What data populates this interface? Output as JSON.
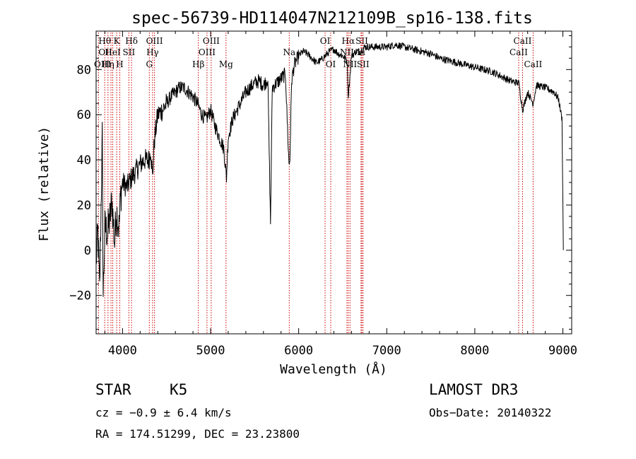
{
  "chart_data": {
    "type": "line",
    "title": "spec-56739-HD114047N212109B_sp16-138.fits",
    "xlabel": "Wavelength (Å)",
    "ylabel": "Flux (relative)",
    "xlim": [
      3700,
      9100
    ],
    "ylim": [
      -37,
      97
    ],
    "xticks": [
      4000,
      5000,
      6000,
      7000,
      8000,
      9000
    ],
    "yticks": [
      -20,
      0,
      20,
      40,
      60,
      80
    ],
    "series": [
      {
        "name": "flux",
        "anchors": [
          [
            3700,
            -5
          ],
          [
            3720,
            8
          ],
          [
            3740,
            -18
          ],
          [
            3760,
            28
          ],
          [
            3770,
            50
          ],
          [
            3780,
            -20
          ],
          [
            3800,
            10
          ],
          [
            3830,
            8
          ],
          [
            3860,
            15
          ],
          [
            3880,
            22
          ],
          [
            3910,
            3
          ],
          [
            3930,
            18
          ],
          [
            3960,
            10
          ],
          [
            3980,
            25
          ],
          [
            4000,
            30
          ],
          [
            4050,
            28
          ],
          [
            4100,
            32
          ],
          [
            4150,
            35
          ],
          [
            4200,
            38
          ],
          [
            4250,
            40
          ],
          [
            4300,
            40
          ],
          [
            4320,
            45
          ],
          [
            4340,
            32
          ],
          [
            4360,
            48
          ],
          [
            4400,
            60
          ],
          [
            4450,
            62
          ],
          [
            4500,
            65
          ],
          [
            4550,
            68
          ],
          [
            4600,
            70
          ],
          [
            4650,
            72
          ],
          [
            4700,
            72
          ],
          [
            4750,
            70
          ],
          [
            4800,
            68
          ],
          [
            4850,
            65
          ],
          [
            4900,
            60
          ],
          [
            4950,
            58
          ],
          [
            5000,
            62
          ],
          [
            5050,
            55
          ],
          [
            5100,
            50
          ],
          [
            5150,
            45
          ],
          [
            5180,
            32
          ],
          [
            5200,
            50
          ],
          [
            5250,
            58
          ],
          [
            5300,
            62
          ],
          [
            5350,
            66
          ],
          [
            5400,
            70
          ],
          [
            5450,
            72
          ],
          [
            5500,
            74
          ],
          [
            5550,
            75
          ],
          [
            5600,
            73
          ],
          [
            5650,
            76
          ],
          [
            5680,
            12
          ],
          [
            5700,
            72
          ],
          [
            5750,
            74
          ],
          [
            5800,
            76
          ],
          [
            5850,
            78
          ],
          [
            5890,
            38
          ],
          [
            5900,
            40
          ],
          [
            5920,
            75
          ],
          [
            5950,
            82
          ],
          [
            6000,
            86
          ],
          [
            6050,
            88
          ],
          [
            6100,
            87
          ],
          [
            6150,
            85
          ],
          [
            6200,
            83
          ],
          [
            6250,
            84
          ],
          [
            6300,
            86
          ],
          [
            6350,
            88
          ],
          [
            6400,
            89
          ],
          [
            6450,
            87
          ],
          [
            6500,
            86
          ],
          [
            6550,
            84
          ],
          [
            6563,
            68
          ],
          [
            6600,
            86
          ],
          [
            6650,
            88
          ],
          [
            6700,
            88
          ],
          [
            6750,
            90
          ],
          [
            6800,
            90
          ],
          [
            6900,
            90
          ],
          [
            7000,
            90
          ],
          [
            7100,
            91
          ],
          [
            7200,
            90
          ],
          [
            7300,
            89
          ],
          [
            7400,
            88
          ],
          [
            7500,
            87
          ],
          [
            7600,
            85
          ],
          [
            7700,
            84
          ],
          [
            7800,
            83
          ],
          [
            7900,
            82
          ],
          [
            8000,
            81
          ],
          [
            8100,
            80
          ],
          [
            8200,
            79
          ],
          [
            8300,
            77
          ],
          [
            8400,
            75
          ],
          [
            8500,
            74
          ],
          [
            8542,
            62
          ],
          [
            8600,
            70
          ],
          [
            8662,
            65
          ],
          [
            8700,
            73
          ],
          [
            8800,
            72
          ],
          [
            8900,
            70
          ],
          [
            8950,
            67
          ],
          [
            8990,
            58
          ],
          [
            9000,
            22
          ],
          [
            9005,
            0
          ]
        ]
      }
    ],
    "lines": [
      {
        "label": "Hθ",
        "w": 3798,
        "row": 1,
        "align": "middle"
      },
      {
        "label": "OII",
        "w": 3727,
        "row": 2,
        "align": "start"
      },
      {
        "label": "OIII",
        "w": 3869,
        "row": 3,
        "align": "end"
      },
      {
        "label": "K",
        "w": 3934,
        "row": 1,
        "align": "middle"
      },
      {
        "label": "HeI",
        "w": 3889,
        "row": 2,
        "align": "middle"
      },
      {
        "label": "Hη",
        "w": 3835,
        "row": 3,
        "align": "middle"
      },
      {
        "label": "Hδ",
        "w": 4102,
        "row": 1,
        "align": "middle"
      },
      {
        "label": "SII",
        "w": 4072,
        "row": 2,
        "align": "middle"
      },
      {
        "label": "H",
        "w": 3969,
        "row": 3,
        "align": "middle"
      },
      {
        "label": "OIII",
        "w": 4363,
        "row": 1,
        "align": "middle"
      },
      {
        "label": "Hγ",
        "w": 4341,
        "row": 2,
        "align": "middle"
      },
      {
        "label": "G",
        "w": 4304,
        "row": 3,
        "align": "middle"
      },
      {
        "label": "Hβ",
        "w": 4861,
        "row": 3,
        "align": "middle"
      },
      {
        "label": "OIII",
        "w": 5007,
        "row": 1,
        "align": "middle"
      },
      {
        "label": "OIII",
        "w": 4959,
        "row": 2,
        "align": "middle"
      },
      {
        "label": "Mg",
        "w": 5175,
        "row": 3,
        "align": "middle"
      },
      {
        "label": "Na",
        "w": 5893,
        "row": 2,
        "align": "middle"
      },
      {
        "label": "OI",
        "w": 6300,
        "row": 1,
        "align": "middle"
      },
      {
        "label": "OI",
        "w": 6364,
        "row": 3,
        "align": "middle"
      },
      {
        "label": "Hα",
        "w": 6563,
        "row": 1,
        "align": "middle"
      },
      {
        "label": "NII",
        "w": 6548,
        "row": 2,
        "align": "middle"
      },
      {
        "label": "NII",
        "w": 6583,
        "row": 3,
        "align": "middle"
      },
      {
        "label": "SII",
        "w": 6717,
        "row": 1,
        "align": "middle"
      },
      {
        "label": "Li",
        "w": 6708,
        "row": 2,
        "align": "middle"
      },
      {
        "label": "SII",
        "w": 6731,
        "row": 3,
        "align": "middle"
      },
      {
        "label": "CaII",
        "w": 8542,
        "row": 1,
        "align": "middle"
      },
      {
        "label": "CaII",
        "w": 8498,
        "row": 2,
        "align": "middle"
      },
      {
        "label": "CaII",
        "w": 8662,
        "row": 3,
        "align": "middle"
      }
    ]
  },
  "info": {
    "object_class": "STAR",
    "subclass": "K5",
    "survey": "LAMOST DR3",
    "cz": "cz = −0.9 ± 6.4 km/s",
    "obs_date": "Obs−Date: 20140322",
    "coords": "RA = 174.51299, DEC =  23.23800"
  },
  "colors": {
    "spectrum": "#000000",
    "line_marker": "#cc0000",
    "axes": "#000000"
  }
}
